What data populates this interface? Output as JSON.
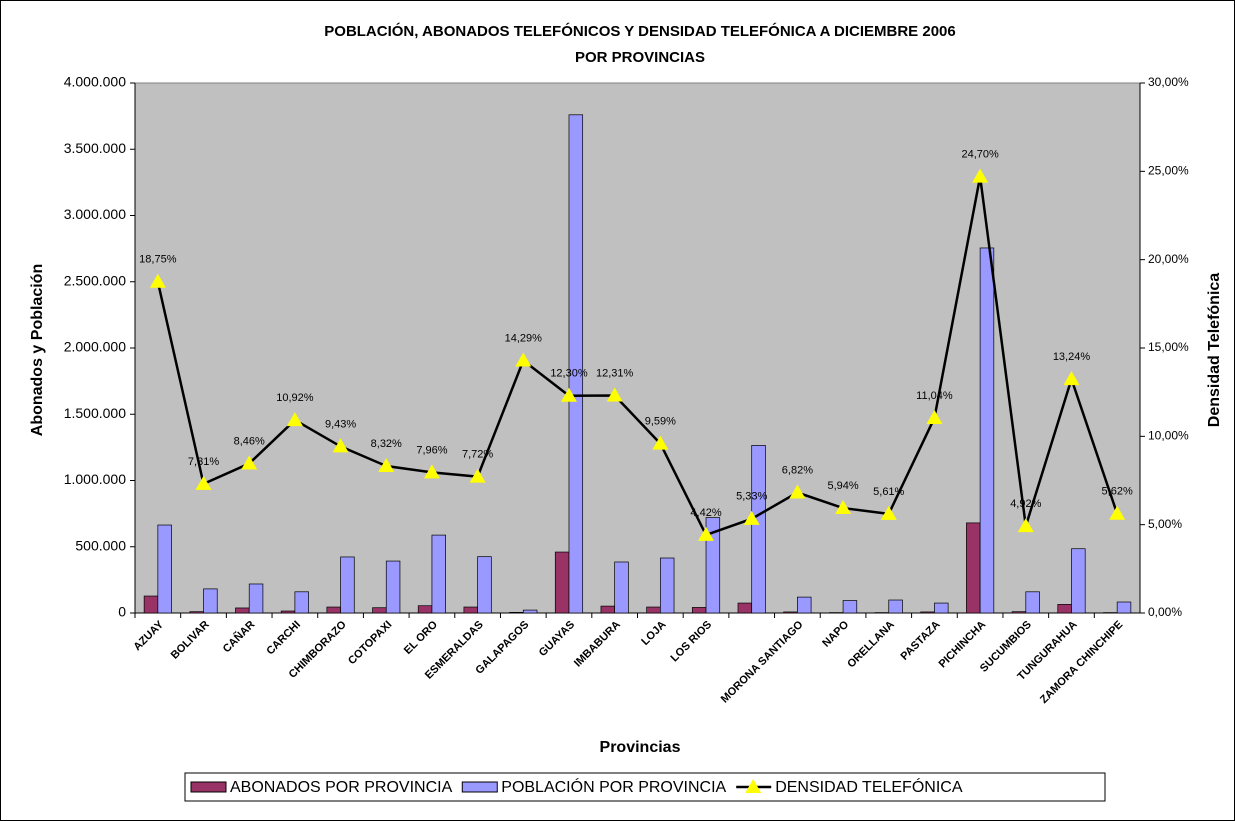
{
  "chart_data": {
    "type": "bar",
    "title": [
      "POBLACIÓN, ABONADOS TELEFÓNICOS Y DENSIDAD TELEFÓNICA A DICIEMBRE 2006",
      "POR PROVINCIAS"
    ],
    "x_label": "Provincias",
    "y_label": "Abonados y Población",
    "y2_label": "Densidad Telefónica",
    "categories": [
      "AZUAY",
      "BOLIVAR",
      "CAÑAR",
      "CARCHI",
      "CHIMBORAZO",
      "COTOPAXI",
      "EL ORO",
      "ESMERALDAS",
      "GALAPAGOS",
      "GUAYAS",
      "IMBABURA",
      "LOJA",
      "LOS RIOS",
      null,
      "MORONA SANTIAGO",
      "NAPO",
      "ORELLANA",
      "PASTAZA",
      "PICHINCHA",
      "SUCUMBIOS",
      "TUNGURAHUA",
      "ZAMORA CHINCHIPE"
    ],
    "series": [
      {
        "name": "ABONADOS POR PROVINCIA",
        "type": "bar",
        "color": "#993366",
        "values": [
          128000,
          10000,
          38000,
          15000,
          45000,
          40000,
          55000,
          45000,
          5000,
          460000,
          52000,
          45000,
          42000,
          75000,
          8000,
          3000,
          3000,
          8000,
          680000,
          10000,
          65000,
          3000
        ]
      },
      {
        "name": "POBLACIÓN POR PROVINCIA",
        "type": "bar",
        "color": "#9999ff",
        "values": [
          664000,
          182000,
          219000,
          160000,
          423000,
          392000,
          588000,
          425000,
          22000,
          3760000,
          385000,
          415000,
          720000,
          1265000,
          120000,
          94000,
          98000,
          75000,
          2755000,
          160000,
          485000,
          83000
        ]
      },
      {
        "name": "DENSIDAD TELEFÓNICA",
        "type": "line",
        "axis": "y2",
        "color": "#000000",
        "marker_color": "#ffff00",
        "values": [
          18.75,
          7.31,
          8.46,
          10.92,
          9.43,
          8.32,
          7.96,
          7.72,
          14.29,
          12.3,
          12.31,
          9.59,
          4.42,
          5.33,
          6.82,
          5.94,
          5.61,
          11.04,
          24.7,
          4.92,
          13.24,
          5.62
        ],
        "value_labels": [
          "18,75%",
          "7,31%",
          "8,46%",
          "10,92%",
          "9,43%",
          "8,32%",
          "7,96%",
          "7,72%",
          "14,29%",
          "12,30%",
          "12,31%",
          "9,59%",
          "4,42%",
          "5,33%",
          "6,82%",
          "5,94%",
          "5,61%",
          "11,04%",
          "24,70%",
          "4,92%",
          "13,24%",
          "5,62%"
        ]
      }
    ],
    "ylim": [
      0,
      4000000
    ],
    "yticks": [
      0,
      {
        "value": 500000,
        "label": "500.000"
      },
      {
        "value": 1000000,
        "label": "1.000.000"
      },
      {
        "value": 1500000,
        "label": "1.500.000"
      },
      {
        "value": 2000000,
        "label": "2.000.000"
      },
      {
        "value": 2500000,
        "label": "2.500.000"
      },
      {
        "value": 3000000,
        "label": "3.000.000"
      },
      {
        "value": 3500000,
        "label": "3.500.000"
      },
      {
        "value": 4000000,
        "label": "4.000.000"
      }
    ],
    "y2lim": [
      0,
      30
    ],
    "y2ticks": [
      {
        "value": 0,
        "label": "0,00%"
      },
      {
        "value": 5,
        "label": "5,00%"
      },
      {
        "value": 10,
        "label": "10,00%"
      },
      {
        "value": 15,
        "label": "15,00%"
      },
      {
        "value": 20,
        "label": "20,00%"
      },
      {
        "value": 25,
        "label": "25,00%"
      },
      {
        "value": 30,
        "label": "30,00%"
      }
    ],
    "plot_background": "#c0c0c0",
    "legend": "bottom"
  }
}
